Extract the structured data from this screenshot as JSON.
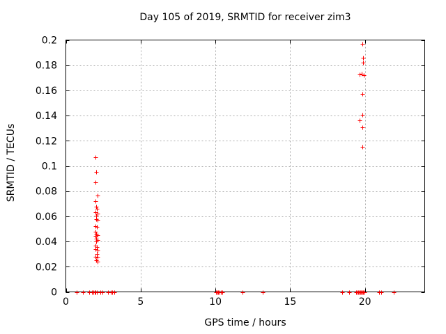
{
  "chart_data": {
    "type": "scatter",
    "title": "Day 105 of 2019, SRMTID for receiver zim3",
    "xlabel": "GPS time / hours",
    "ylabel": "SRMTID / TECUs",
    "xlim": [
      0,
      24
    ],
    "ylim": [
      0,
      0.2
    ],
    "xticks": [
      [
        0,
        "0"
      ],
      [
        5,
        "5"
      ],
      [
        10,
        "10"
      ],
      [
        15,
        "15"
      ],
      [
        20,
        "20"
      ]
    ],
    "yticks": [
      [
        0,
        "0"
      ],
      [
        0.02,
        "0.02"
      ],
      [
        0.04,
        "0.04"
      ],
      [
        0.06,
        "0.06"
      ],
      [
        0.08,
        "0.08"
      ],
      [
        0.1,
        "0.1"
      ],
      [
        0.12,
        "0.12"
      ],
      [
        0.14,
        "0.14"
      ],
      [
        0.16,
        "0.16"
      ],
      [
        0.18,
        "0.18"
      ],
      [
        0.2,
        "0.2"
      ]
    ],
    "grid": true,
    "legend": "none",
    "marker": "plus",
    "grid_color": "#a8a8a8",
    "axis_color": "#000000",
    "series": [
      {
        "name": "SRMTID",
        "color": "#ff0000",
        "points": [
          [
            2.0,
            0.107
          ],
          [
            2.04,
            0.0955
          ],
          [
            2.0,
            0.0872
          ],
          [
            2.1,
            0.0765
          ],
          [
            1.96,
            0.0722
          ],
          [
            2.05,
            0.0675
          ],
          [
            2.07,
            0.0662
          ],
          [
            1.97,
            0.063
          ],
          [
            2.1,
            0.0621
          ],
          [
            2.02,
            0.0605
          ],
          [
            2.04,
            0.0576
          ],
          [
            2.14,
            0.057
          ],
          [
            1.99,
            0.0521
          ],
          [
            2.09,
            0.0514
          ],
          [
            1.96,
            0.0476
          ],
          [
            2.04,
            0.0461
          ],
          [
            2.11,
            0.045
          ],
          [
            2.0,
            0.0444
          ],
          [
            2.03,
            0.042
          ],
          [
            2.12,
            0.041
          ],
          [
            2.05,
            0.0398
          ],
          [
            1.97,
            0.0365
          ],
          [
            2.09,
            0.0356
          ],
          [
            2.0,
            0.034
          ],
          [
            2.12,
            0.0326
          ],
          [
            2.06,
            0.03
          ],
          [
            1.96,
            0.0277
          ],
          [
            2.14,
            0.0271
          ],
          [
            2.04,
            0.025
          ],
          [
            2.13,
            0.0243
          ],
          [
            19.85,
            0.197
          ],
          [
            19.87,
            0.186
          ],
          [
            19.86,
            0.1818
          ],
          [
            19.63,
            0.1727
          ],
          [
            19.78,
            0.1731
          ],
          [
            19.9,
            0.1722
          ],
          [
            19.82,
            0.157
          ],
          [
            19.85,
            0.1406
          ],
          [
            19.63,
            0.1364
          ],
          [
            19.81,
            0.1305
          ],
          [
            19.82,
            0.1151
          ],
          [
            0.73,
            0
          ],
          [
            1.15,
            0
          ],
          [
            1.57,
            0
          ],
          [
            1.75,
            0
          ],
          [
            1.85,
            0
          ],
          [
            1.92,
            0
          ],
          [
            1.99,
            0
          ],
          [
            2.06,
            0
          ],
          [
            2.32,
            0
          ],
          [
            2.46,
            0
          ],
          [
            2.83,
            0
          ],
          [
            3.02,
            0
          ],
          [
            3.11,
            0
          ],
          [
            3.22,
            0
          ],
          [
            10.05,
            0
          ],
          [
            10.12,
            0
          ],
          [
            10.2,
            0
          ],
          [
            10.28,
            0
          ],
          [
            10.37,
            0
          ],
          [
            10.47,
            0
          ],
          [
            11.8,
            0
          ],
          [
            13.15,
            0
          ],
          [
            18.5,
            0
          ],
          [
            18.94,
            0
          ],
          [
            19.4,
            0
          ],
          [
            19.47,
            0
          ],
          [
            19.54,
            0
          ],
          [
            19.61,
            0
          ],
          [
            19.68,
            0
          ],
          [
            19.75,
            0
          ],
          [
            19.82,
            0
          ],
          [
            19.89,
            0
          ],
          [
            19.98,
            0
          ],
          [
            20.96,
            0
          ],
          [
            21.1,
            0
          ],
          [
            21.93,
            0
          ]
        ]
      }
    ]
  }
}
